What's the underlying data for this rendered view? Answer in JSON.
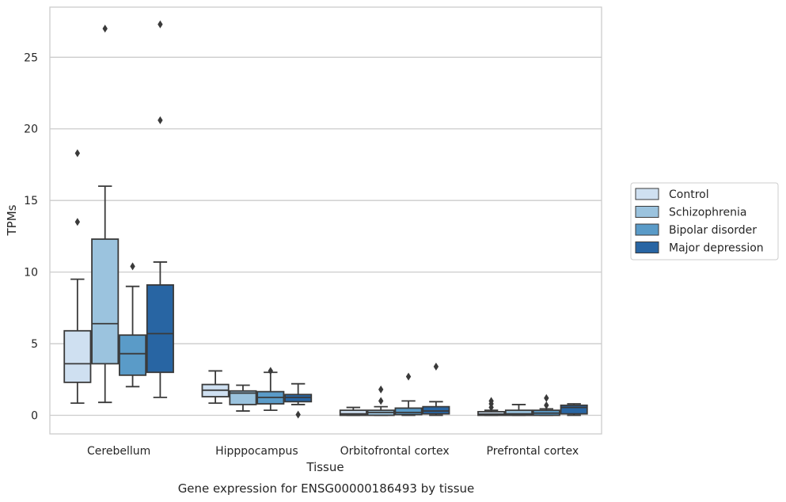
{
  "caption": "Gene expression for ENSG00000186493 by tissue",
  "chart_data": {
    "type": "box",
    "xlabel": "Tissue",
    "ylabel": "TPMs",
    "ylim": [
      -1.3,
      28.5
    ],
    "yticks": [
      0,
      5,
      10,
      15,
      20,
      25
    ],
    "grid": "horizontal",
    "legend_position": "right",
    "categories": [
      "Cerebellum",
      "Hipppocampus",
      "Orbitofrontal cortex",
      "Prefrontal cortex"
    ],
    "series": [
      {
        "name": "Control",
        "color": "#cfe0f1",
        "boxes": [
          {
            "q1": 2.3,
            "median": 3.6,
            "q3": 5.9,
            "whisker_low": 0.85,
            "whisker_high": 9.5,
            "outliers": [
              13.5,
              18.3
            ]
          },
          {
            "q1": 1.3,
            "median": 1.75,
            "q3": 2.15,
            "whisker_low": 0.85,
            "whisker_high": 3.1,
            "outliers": []
          },
          {
            "q1": 0.0,
            "median": 0.1,
            "q3": 0.35,
            "whisker_low": 0.0,
            "whisker_high": 0.55,
            "outliers": []
          },
          {
            "q1": 0.0,
            "median": 0.08,
            "q3": 0.25,
            "whisker_low": 0.0,
            "whisker_high": 0.35,
            "outliers": [
              0.55,
              0.8,
              1.0
            ]
          }
        ]
      },
      {
        "name": "Schizophrenia",
        "color": "#9bc3de",
        "boxes": [
          {
            "q1": 3.6,
            "median": 6.4,
            "q3": 12.3,
            "whisker_low": 0.9,
            "whisker_high": 16.0,
            "outliers": [
              27.0
            ]
          },
          {
            "q1": 0.75,
            "median": 1.55,
            "q3": 1.7,
            "whisker_low": 0.3,
            "whisker_high": 2.1,
            "outliers": []
          },
          {
            "q1": 0.0,
            "median": 0.2,
            "q3": 0.35,
            "whisker_low": 0.0,
            "whisker_high": 0.6,
            "outliers": [
              1.0,
              1.8
            ]
          },
          {
            "q1": 0.0,
            "median": 0.1,
            "q3": 0.35,
            "whisker_low": 0.0,
            "whisker_high": 0.75,
            "outliers": []
          }
        ]
      },
      {
        "name": "Bipolar disorder",
        "color": "#5a9bc8",
        "boxes": [
          {
            "q1": 2.8,
            "median": 4.3,
            "q3": 5.6,
            "whisker_low": 2.0,
            "whisker_high": 9.0,
            "outliers": [
              10.4
            ]
          },
          {
            "q1": 0.8,
            "median": 1.25,
            "q3": 1.65,
            "whisker_low": 0.35,
            "whisker_high": 3.0,
            "outliers": [
              3.1
            ]
          },
          {
            "q1": 0.05,
            "median": 0.2,
            "q3": 0.5,
            "whisker_low": 0.0,
            "whisker_high": 1.0,
            "outliers": [
              2.7
            ]
          },
          {
            "q1": 0.0,
            "median": 0.15,
            "q3": 0.35,
            "whisker_low": 0.0,
            "whisker_high": 0.45,
            "outliers": [
              0.7,
              1.2
            ]
          }
        ]
      },
      {
        "name": "Major depression",
        "color": "#2865a3",
        "boxes": [
          {
            "q1": 3.0,
            "median": 5.7,
            "q3": 9.1,
            "whisker_low": 1.25,
            "whisker_high": 10.7,
            "outliers": [
              20.6,
              27.3
            ]
          },
          {
            "q1": 0.95,
            "median": 1.25,
            "q3": 1.45,
            "whisker_low": 0.75,
            "whisker_high": 2.2,
            "outliers": [
              0.05
            ]
          },
          {
            "q1": 0.1,
            "median": 0.3,
            "q3": 0.6,
            "whisker_low": 0.0,
            "whisker_high": 0.95,
            "outliers": [
              3.4
            ]
          },
          {
            "q1": 0.1,
            "median": 0.55,
            "q3": 0.7,
            "whisker_low": 0.0,
            "whisker_high": 0.8,
            "outliers": []
          }
        ]
      }
    ]
  }
}
